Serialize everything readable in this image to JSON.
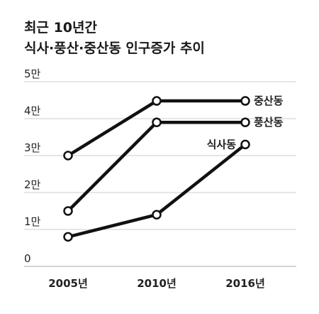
{
  "chart_data": {
    "type": "line",
    "title": "최근 10년간",
    "subtitle": "식사·풍산·중산동 인구증가 추이",
    "xlabel": "",
    "ylabel": "",
    "categories": [
      "2005년",
      "2010년",
      "2016년"
    ],
    "ylim": [
      0,
      50000
    ],
    "yticks": [
      0,
      10000,
      20000,
      30000,
      40000,
      50000
    ],
    "ytick_labels": [
      "0",
      "1만",
      "2만",
      "3만",
      "4만",
      "5만"
    ],
    "grid": true,
    "legend": "labels at end of lines",
    "series": [
      {
        "name": "중산동",
        "values": [
          30000,
          44800,
          44800
        ]
      },
      {
        "name": "풍산동",
        "values": [
          15000,
          39000,
          39000
        ]
      },
      {
        "name": "식사동",
        "values": [
          8000,
          14000,
          33000
        ]
      }
    ]
  },
  "colors": {
    "line": "#111111",
    "grid": "#bbbbbb",
    "marker_fill": "#ffffff"
  }
}
